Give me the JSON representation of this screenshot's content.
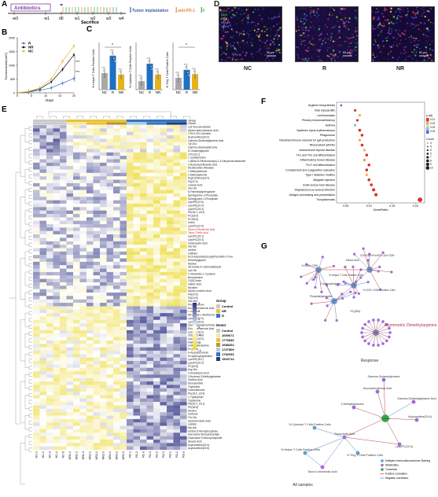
{
  "panels": {
    "A": "A",
    "B": "B",
    "C": "C",
    "D": "D",
    "E": "E",
    "F": "F",
    "G": "G"
  },
  "panelA": {
    "antibiotics": "Antibiotics",
    "timeline": [
      "-w3",
      "-w1",
      "d0",
      "w1",
      "w2",
      "w3",
      "w4"
    ],
    "sacrifice": "Sacrifice",
    "legend": [
      {
        "label": "Tumor implantation",
        "color": "#3b5da8"
      },
      {
        "label": "anti-PD-1",
        "color": "#e8863a"
      },
      {
        "label": "FMT(R/NR)",
        "color": "#33a651"
      }
    ]
  },
  "panelB": {
    "ylabel": "Tumorvolume(mm³)",
    "xlabel": "Days",
    "sig": [
      "***",
      "***"
    ],
    "yticks": [
      "0",
      "500",
      "1000",
      "1500",
      "2000"
    ],
    "xticks": [
      "0",
      "5",
      "10",
      "15",
      "20"
    ]
  },
  "panelC": {
    "charts": [
      {
        "ylabel": "% Helper T Cells Positive Cells",
        "sig": "*"
      },
      {
        "ylabel": "% Cytotoxic T Cells Positive Cells",
        "sig": ""
      },
      {
        "ylabel": "% Treg T Cells Positive Cells",
        "sig": "*"
      }
    ],
    "categories": [
      "NC",
      "R",
      "NR"
    ]
  },
  "panelD": {
    "labels": [
      "NC",
      "R",
      "NR"
    ],
    "channels": [
      {
        "label": "CD3",
        "color": "#e23b3b"
      },
      {
        "label": "CD4",
        "color": "#33c24a"
      },
      {
        "label": "CD8",
        "color": "#e8d93a"
      },
      {
        "label": "Foxp3",
        "color": "#c13bd1"
      },
      {
        "label": "DAPI",
        "color": "#4a63e8"
      }
    ],
    "scale": "50 μm"
  },
  "panelE": {
    "track_labels": [
      "Group",
      "Donor"
    ],
    "metabolites": [
      "13Z-Docosenamide",
      "Alpha-Hydroxybutyric Acid",
      "CT8:3-OH Carnitine",
      "Acylcarnitine(20:2)",
      "Gamma-Glutamylglutamic Acid",
      "Tyr-Glu",
      "Gamma-Glutamyltyrosine",
      "D-Glutamylglycine",
      "LPC(18:1)",
      "L-Cystathionine",
      "1-(Beta-D-Ribofuranosyl)-1,4-Dihydronicotinamide",
      "3-Hydroxyanthranilic Acid",
      "Nicotinamide Riboside",
      "1-Methyladenine",
      "1-Methyladenine",
      "Acylcarnitine(22:4)",
      "FA(22:4)",
      "Linoleic Acid",
      "Glu-His",
      "N-Palmitoylsphingosine",
      "Sphinganine-1-Phosphate",
      "Sphingosine-1-Phosphate",
      "LysoPE(22:6)",
      "LysoPE(20:4)",
      "LysoPC(20:4)",
      "PE(18:1_18:2)",
      "PC(18:0)",
      "PC(35:5)",
      "Uracil",
      "LysoPC(22:4)",
      "Tauro-b-Muricholic Acid",
      "Tauro-Cholic Acid",
      "LysoPC(18:1)",
      "LysoPC(20:4)",
      "Indoleacetic Acid",
      "Glu-Ser",
      "Uridine",
      "Caffeine",
      "N-(3-Acetamidopropyl)Pyrrolidin-2-One",
      "Dimethylglycine",
      "Alanine",
      "3H-Indole-4-Carboxaldehyde",
      "Lys-Glu",
      "Y-Glutamine-L-Cysteine",
      "Benzylamine",
      "13(S)-Hode",
      "Valeric Acid",
      "Nicotine",
      "Alpha-Linolenic Acid",
      "FA(20:5)",
      "FA(24:5)",
      "Glu-Met",
      "Pregnenolone",
      "Docosahexaenoic Acid",
      "L-Arginine",
      "N6-Acetyl-L-Methionine",
      "LysoPC(17:0)",
      "LysoPC(18:0)",
      "Glycerophosphocholine",
      "Eicosapentaenoic Acid",
      "LysoPE(16:0)",
      "Octanoic Acid",
      "LysoPC(16:0)",
      "Malic Acid",
      "3-Methylhistamine",
      "PC(42:5)",
      "N-Acetylserotonin",
      "N-Hydroxytryptamine",
      "LysoPE(18:1)",
      "LysoPC(20:3)",
      "PC(40:6)",
      "Asp-His",
      "2-Ketobutyric Acid",
      "3-Hydroxy-3-Methylglutarate",
      "Glutaric Acid",
      "Deoxyuridine",
      "Thymidine",
      "Corticosterone",
      "PE(18:0_20:4)",
      "L-Tryptophan",
      "Tryptamine",
      "PE(20:0_18:1)",
      "PE(38:6)",
      "Alcohol",
      "Carbinol",
      "Thr-Glu",
      "Hydrocinnamic Acid",
      "Lactate",
      "Ala-Ala",
      "Uridine 5-Monophosphate",
      "Adenosine Monophosphate",
      "Guanosine 5-Monophosphate",
      "Stearic Acid",
      "Acylcarnitine(20:4)",
      "Acylcarnitine(22:6)"
    ],
    "highlight_metabolites": [
      "Tauro-b-Muricholic Acid",
      "Tauro-Cholic Acid",
      "L-Arginine"
    ],
    "samples": [
      "NC-1",
      "NC-2",
      "NC-3",
      "NC-4",
      "NC-5",
      "NR1-1",
      "NR1-2",
      "NR1-3",
      "NR2-1",
      "NR2-2",
      "NR2-3",
      "NR3-1",
      "NR3-2",
      "NR3-3",
      "R1-1",
      "R1-2",
      "R1-3",
      "R2-1",
      "R2-2",
      "R2-3",
      "R3-1",
      "R3-2",
      "R3-3"
    ],
    "group_legend": {
      "title": "Group",
      "items": [
        {
          "label": "Control",
          "color": "#c9c9c9"
        },
        {
          "label": "NR",
          "color": "#e8c33a"
        },
        {
          "label": "R",
          "color": "#3573c2"
        }
      ]
    },
    "color_scale": {
      "ticks": [
        "3",
        "2",
        "1",
        "0",
        "-1",
        "-2",
        "-3"
      ]
    },
    "donor_legend": {
      "title": "Donor",
      "items": [
        {
          "label": "Control",
          "color": "#c9c9c9"
        },
        {
          "label": "1690671",
          "color": "#f5e6a8"
        },
        {
          "label": "1776830",
          "color": "#e8c33a"
        },
        {
          "label": "1688264",
          "color": "#b8962e"
        },
        {
          "label": "1737509",
          "color": "#a8c8e8"
        },
        {
          "label": "1782093",
          "color": "#3573c2"
        },
        {
          "label": "1523714",
          "color": "#1d3f7a"
        }
      ]
    }
  },
  "panelF": {
    "pathways": [
      "Arginine biosynthesis",
      "Viral myocarditis",
      "Leishmaniasis",
      "Primary immunodeficiency",
      "Asthma",
      "Systemic lupus erythematosus",
      "Phagosome",
      "Intestinal immune network for IgA production",
      "Rheumatoid arthritis",
      "Autoimmune thyroid disease",
      "Th1 and Th2 cell differentiation",
      "Inflammatory bowel disease",
      "Th17 cell differentiation",
      "Complement and coagulation cascades",
      "Type I diabetes mellitus",
      "Allograft rejection",
      "Graft-versus-host disease",
      "Staphylococcus aureus infection",
      "Antigen processing and presentation",
      "Toxoplasmosis"
    ],
    "xlabel": "GeneRatio",
    "xticks": [
      "0.05",
      "0.10",
      "0.15",
      "0.20"
    ],
    "legend_p": {
      "title": "p.adj",
      "ticks": [
        "0.01",
        "0.02",
        "0.03",
        "0.04"
      ]
    },
    "legend_count": {
      "title": "Count",
      "ticks": [
        "3",
        "4",
        "5",
        "6",
        "7",
        "8",
        "9",
        "10"
      ]
    }
  },
  "panelG": {
    "response_label": "Response",
    "all_samples_label": "All samples",
    "center_label": "Asymmetric Dimethylarginine",
    "nodes_top": [
      "CD3+CD4+FoxP3+CD4+CD8+",
      "Stearic Acid",
      "% CD3+ CD8+",
      "% Helper T Cells Positive Cells",
      "2-Hydroxybutyrate",
      "% CD3+ CD8+ Positive Cells",
      "Phosphatidylcholine",
      "PC(38:6)"
    ],
    "nodes_bottom": [
      "Gamma-Glutamyltyrosine",
      "Docosahexaenoic Acid",
      "Gamma-Glutamylglutamic Acid",
      "3-Methylhistamine",
      "Tumorsize",
      "Acylcarnitine(20:4)",
      "% Cytotoxic T Cells Positive Cells",
      "Taurocholic Acid",
      "% Helper T Cells Positive Cells",
      "LysoPC(22:4)",
      "% Treg T Cells Positive Cells",
      "Tauro-b-Muricholic Acid"
    ],
    "legend": [
      {
        "label": "Multiplex immunofluorescence Staining",
        "color": "#5aa0d8"
      },
      {
        "label": "Metabolites",
        "color": "#a36ad6"
      },
      {
        "label": "Tumorsize",
        "color": "#33a651"
      },
      {
        "label": "Positive correlation",
        "color": "#c2474f"
      },
      {
        "label": "Negative correlation",
        "color": "#5a82c8"
      }
    ]
  }
}
